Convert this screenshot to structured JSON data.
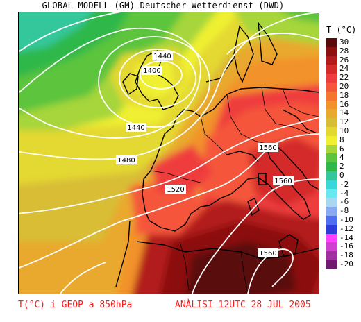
{
  "title": "GLOBAL MODELL (GM)-Deutscher Wetterdienst (DWD)",
  "legend": {
    "title": "T (°C)",
    "items": [
      {
        "label": "30",
        "color": "#5a0a0a"
      },
      {
        "label": "28",
        "color": "#8c1010"
      },
      {
        "label": "26",
        "color": "#b31a1a"
      },
      {
        "label": "24",
        "color": "#d42a2a"
      },
      {
        "label": "22",
        "color": "#ef3d3d"
      },
      {
        "label": "20",
        "color": "#f5573b"
      },
      {
        "label": "18",
        "color": "#f3752e"
      },
      {
        "label": "16",
        "color": "#f2922a"
      },
      {
        "label": "14",
        "color": "#e9a92e"
      },
      {
        "label": "12",
        "color": "#d8bd34"
      },
      {
        "label": "10",
        "color": "#e4d830"
      },
      {
        "label": "8",
        "color": "#f0f030"
      },
      {
        "label": "6",
        "color": "#a6d63a"
      },
      {
        "label": "4",
        "color": "#5cc43e"
      },
      {
        "label": "2",
        "color": "#2eb84a"
      },
      {
        "label": "0",
        "color": "#34c79c"
      },
      {
        "label": "-2",
        "color": "#38d8d8"
      },
      {
        "label": "-4",
        "color": "#68e8f0"
      },
      {
        "label": "-6",
        "color": "#a8d8f0"
      },
      {
        "label": "-8",
        "color": "#88aaf0"
      },
      {
        "label": "-10",
        "color": "#4f6ff0"
      },
      {
        "label": "-12",
        "color": "#2b3cd8"
      },
      {
        "label": "-14",
        "color": "#ff40ff"
      },
      {
        "label": "-16",
        "color": "#d040d0"
      },
      {
        "label": "-18",
        "color": "#a030a0"
      },
      {
        "label": "-20",
        "color": "#701a70"
      }
    ]
  },
  "isolines": {
    "color": "#ffffff",
    "labels": [
      "1440",
      "1400",
      "1440",
      "1480",
      "1520",
      "1560",
      "1560",
      "1560"
    ]
  },
  "footer": {
    "left": "T(°C) i GEOP a 850hPa",
    "right": "ANÀLISI 12UTC 28 JUL 2005"
  }
}
